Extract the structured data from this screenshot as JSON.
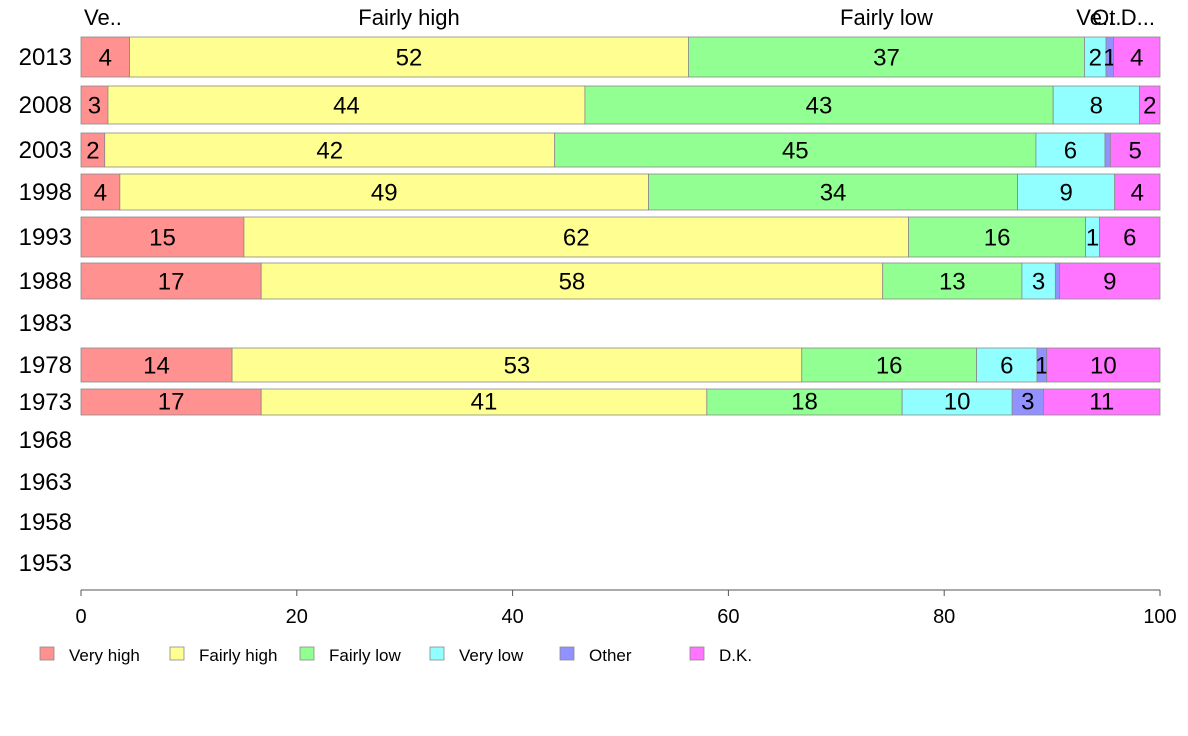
{
  "chart_data": {
    "type": "bar",
    "orientation": "horizontal",
    "stacked": true,
    "categories": [
      "2013",
      "2008",
      "2003",
      "1998",
      "1993",
      "1988",
      "1983",
      "1978",
      "1973",
      "1968",
      "1963",
      "1958",
      "1953"
    ],
    "series": [
      {
        "name": "Very high",
        "color": "#ff9191",
        "short_label": "Ve..",
        "values": [
          4.5,
          2.5,
          2.2,
          3.6,
          15.1,
          16.7,
          null,
          14.0,
          16.7,
          null,
          null,
          null,
          null
        ]
      },
      {
        "name": "Fairly high",
        "color": "#ffff91",
        "short_label": "Fairly high",
        "values": [
          51.8,
          44.2,
          41.7,
          49.0,
          61.6,
          57.6,
          null,
          52.8,
          41.3,
          null,
          null,
          null,
          null
        ]
      },
      {
        "name": "Fairly low",
        "color": "#91ff91",
        "short_label": "Fairly low",
        "values": [
          36.7,
          43.4,
          44.6,
          34.2,
          16.4,
          12.9,
          null,
          16.2,
          18.1,
          null,
          null,
          null,
          null
        ]
      },
      {
        "name": "Very low",
        "color": "#91ffff",
        "short_label": "Ve..",
        "values": [
          2.0,
          8.0,
          6.4,
          9.0,
          1.3,
          3.1,
          null,
          5.6,
          10.2,
          null,
          null,
          null,
          null
        ]
      },
      {
        "name": "Other",
        "color": "#9191ff",
        "short_label": "Ot..",
        "values": [
          0.7,
          0.0,
          0.5,
          0.0,
          0.0,
          0.4,
          null,
          0.9,
          2.9,
          null,
          null,
          null,
          null
        ]
      },
      {
        "name": "D.K.",
        "color": "#ff75ff",
        "short_label": "D...",
        "values": [
          4.3,
          1.9,
          4.6,
          4.2,
          5.6,
          9.3,
          null,
          10.5,
          10.8,
          null,
          null,
          null,
          null
        ]
      }
    ],
    "data_labels": [
      [
        "4",
        "52",
        "37",
        "2",
        "1",
        "4"
      ],
      [
        "3",
        "44",
        "43",
        "8",
        "",
        "2"
      ],
      [
        "2",
        "42",
        "45",
        "6",
        "",
        "5"
      ],
      [
        "4",
        "49",
        "34",
        "9",
        "",
        "4"
      ],
      [
        "15",
        "62",
        "16",
        "1",
        "",
        "6"
      ],
      [
        "17",
        "58",
        "13",
        "3",
        "",
        "9"
      ],
      [
        "",
        "",
        "",
        "",
        "",
        ""
      ],
      [
        "14",
        "53",
        "16",
        "6",
        "1",
        "10"
      ],
      [
        "17",
        "41",
        "18",
        "10",
        "3",
        "11"
      ],
      [
        "",
        "",
        "",
        "",
        "",
        ""
      ],
      [
        "",
        "",
        "",
        "",
        "",
        ""
      ],
      [
        "",
        "",
        "",
        "",
        "",
        ""
      ],
      [
        "",
        "",
        "",
        "",
        "",
        ""
      ]
    ],
    "top_labels": [
      "Ve..",
      "Fairly high",
      "Fairly low",
      "Ve..",
      "Ot..",
      "D..."
    ],
    "xlim": [
      0,
      100
    ],
    "xticks": [
      "0",
      "20",
      "40",
      "60",
      "80",
      "100"
    ],
    "grid": false,
    "legend_position": "bottom",
    "title": "",
    "xlabel": "",
    "ylabel": ""
  }
}
